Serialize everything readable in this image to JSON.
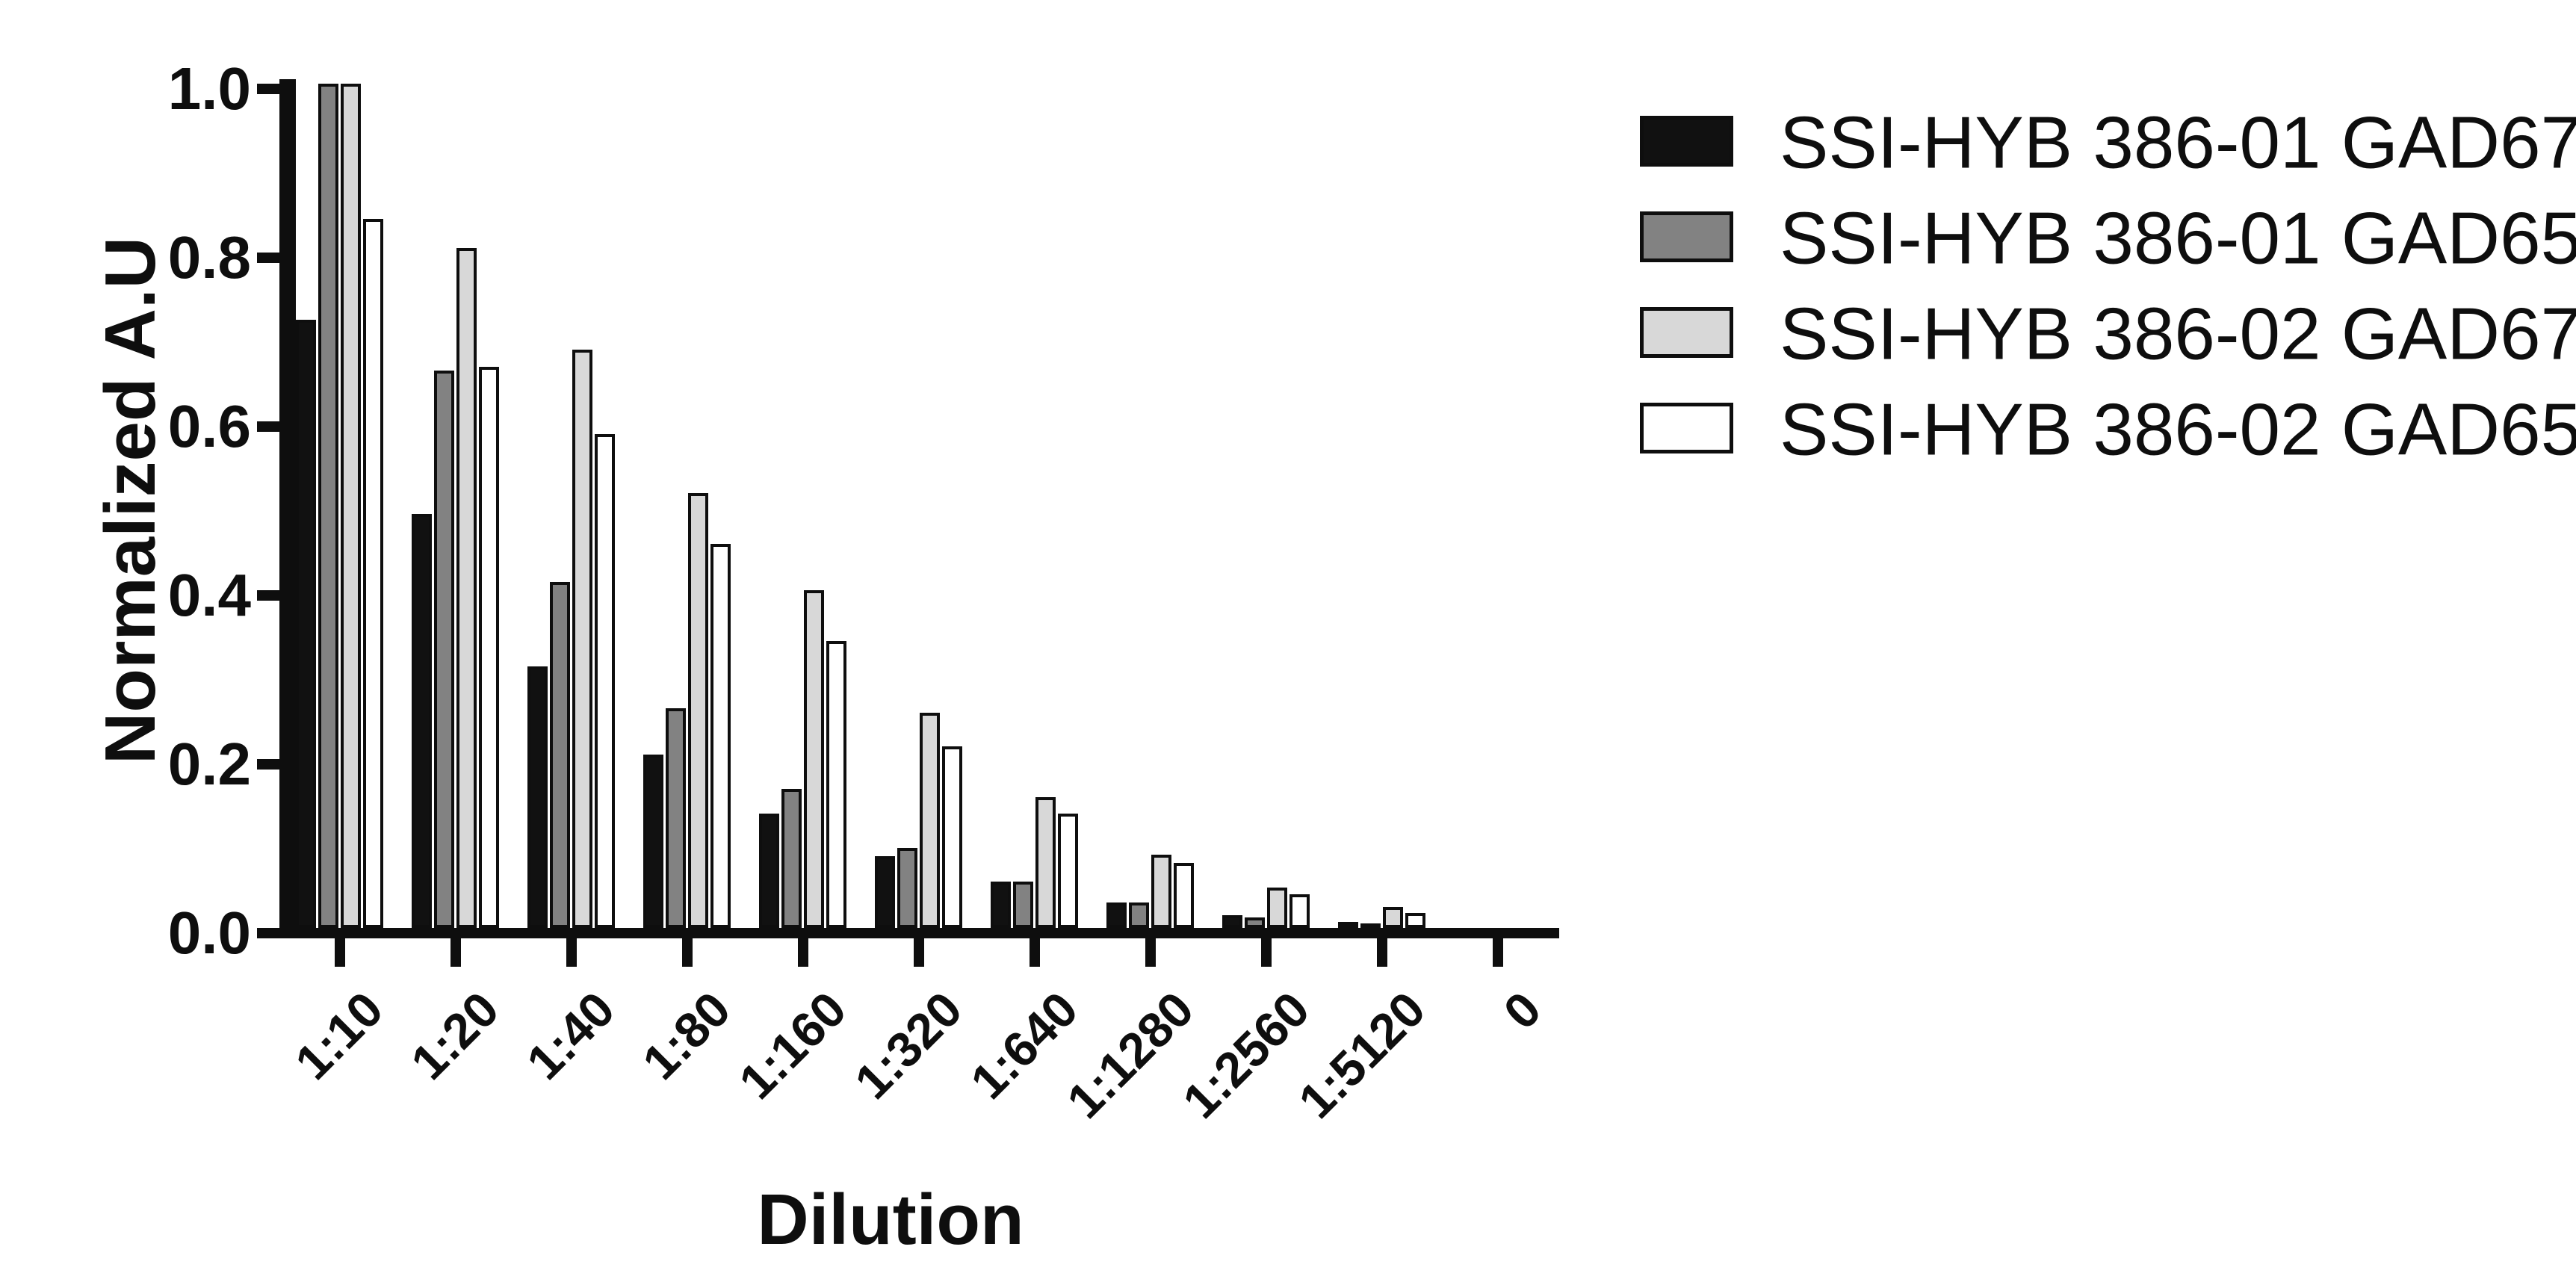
{
  "figure": {
    "background": "#ffffff",
    "axis_color": "#0e0e0e"
  },
  "chart_data": {
    "type": "bar",
    "title": "",
    "xlabel": "Dilution",
    "ylabel": "Normalized A.U",
    "categories": [
      "1:10",
      "1:20",
      "1:40",
      "1:80",
      "1:160",
      "1:320",
      "1:640",
      "1:1280",
      "1:2560",
      "1:5120",
      "0"
    ],
    "ytick_labels": [
      "0.0",
      "0.2",
      "0.4",
      "0.6",
      "0.8",
      "1.0"
    ],
    "yticks": [
      0.0,
      0.2,
      0.4,
      0.6,
      0.8,
      1.0
    ],
    "ylim": [
      0.0,
      1.0
    ],
    "grid": false,
    "legend_position": "top-right",
    "bar_outline_color": "#0e0e0e",
    "series": [
      {
        "name": "SSI-HYB 386-01 GAD67",
        "color": "#111111",
        "values": [
          0.72,
          0.49,
          0.31,
          0.205,
          0.135,
          0.085,
          0.055,
          0.03,
          0.015,
          0.007,
          0
        ]
      },
      {
        "name": "SSI-HYB 386-01 GAD65",
        "color": "#828282",
        "values": [
          1.0,
          0.66,
          0.41,
          0.26,
          0.165,
          0.095,
          0.055,
          0.03,
          0.012,
          0.004,
          0
        ]
      },
      {
        "name": "SSI-HYB 386-02 GAD67",
        "color": "#d8d8d8",
        "values": [
          1.0,
          0.805,
          0.685,
          0.515,
          0.4,
          0.255,
          0.155,
          0.087,
          0.048,
          0.025,
          0
        ]
      },
      {
        "name": "SSI-HYB 386-02 GAD65",
        "color": "#ffffff",
        "values": [
          0.84,
          0.665,
          0.585,
          0.455,
          0.34,
          0.215,
          0.135,
          0.077,
          0.04,
          0.018,
          0
        ]
      }
    ]
  }
}
